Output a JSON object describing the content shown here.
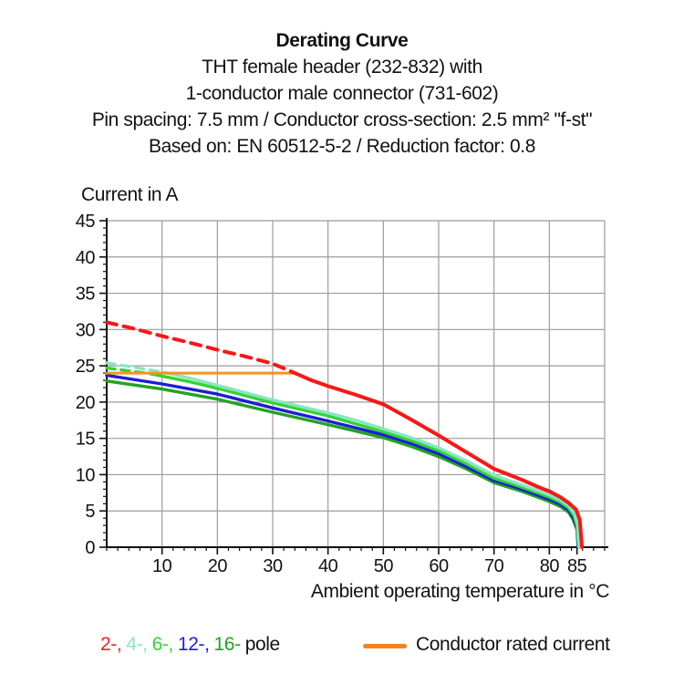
{
  "header": {
    "title": "Derating Curve",
    "subtitle_lines": [
      "THT female header (232-832) with",
      "1-conductor male connector (731-602)",
      "Pin spacing: 7.5 mm / Conductor cross-section: 2.5 mm² \"f-st\"",
      "Based on: EN 60512-5-2 / Reduction factor: 0.8"
    ]
  },
  "legend": {
    "pole_items": [
      {
        "label": "2-,",
        "color": "#fb1e1e"
      },
      {
        "label": "4-,",
        "color": "#8ae5c1"
      },
      {
        "label": "6-,",
        "color": "#31d431"
      },
      {
        "label": "12-,",
        "color": "#1d1dd8"
      },
      {
        "label": "16-",
        "color": "#22a322"
      }
    ],
    "pole_suffix": "pole",
    "rated_swatch_color": "#f8821a",
    "rated_label": "Conductor rated current"
  },
  "chart_data": {
    "type": "line",
    "title": "Derating Curve",
    "ylabel": "Current in A",
    "xlabel": "Ambient operating temperature in °C",
    "xlim": [
      0,
      90
    ],
    "ylim": [
      0,
      45
    ],
    "grid": true,
    "grid_color": "#9b9b9b",
    "axis_color": "#0f0f0f",
    "x_major_ticks": [
      10,
      20,
      30,
      40,
      50,
      60,
      70,
      80,
      85
    ],
    "x_minor_step": 2,
    "y_major_ticks": [
      0,
      5,
      10,
      15,
      20,
      25,
      30,
      35,
      40,
      45
    ],
    "y_minor_step": 1,
    "grid_x": [
      10,
      20,
      30,
      40,
      50,
      60,
      70,
      80,
      90
    ],
    "grid_y": [
      5,
      10,
      15,
      20,
      25,
      30,
      35,
      40,
      45
    ],
    "series": [
      {
        "name": "16-pole",
        "color": "#22a322",
        "width": 3.4,
        "dash_until": null,
        "points": [
          [
            0,
            22.9
          ],
          [
            10,
            21.8
          ],
          [
            20,
            20.4
          ],
          [
            30,
            18.6
          ],
          [
            40,
            16.9
          ],
          [
            50,
            15.1
          ],
          [
            55,
            13.9
          ],
          [
            60,
            12.5
          ],
          [
            65,
            10.8
          ],
          [
            70,
            8.9
          ],
          [
            75,
            7.7
          ],
          [
            80,
            6.3
          ],
          [
            82,
            5.6
          ],
          [
            83.5,
            4.8
          ],
          [
            84.3,
            3.8
          ],
          [
            85,
            2.4
          ],
          [
            85.2,
            0
          ]
        ]
      },
      {
        "name": "12-pole",
        "color": "#1d1dd8",
        "width": 3.4,
        "dash_until": null,
        "points": [
          [
            0,
            23.7
          ],
          [
            10,
            22.5
          ],
          [
            20,
            21.1
          ],
          [
            30,
            19.2
          ],
          [
            40,
            17.4
          ],
          [
            50,
            15.5
          ],
          [
            55,
            14.3
          ],
          [
            60,
            12.9
          ],
          [
            65,
            11.1
          ],
          [
            70,
            9.2
          ],
          [
            75,
            8.0
          ],
          [
            80,
            6.6
          ],
          [
            82,
            5.9
          ],
          [
            83.5,
            5.1
          ],
          [
            84.4,
            4.0
          ],
          [
            85,
            2.6
          ],
          [
            85.2,
            0
          ]
        ]
      },
      {
        "name": "6-pole",
        "color": "#31d431",
        "width": 3.4,
        "dash_until": 8,
        "dash": "9,7",
        "points": [
          [
            0,
            24.7
          ],
          [
            4,
            24.3
          ],
          [
            8,
            23.9
          ],
          [
            15,
            22.8
          ],
          [
            20,
            21.9
          ],
          [
            25,
            20.9
          ],
          [
            30,
            19.9
          ],
          [
            35,
            19.0
          ],
          [
            40,
            18.1
          ],
          [
            45,
            17.0
          ],
          [
            50,
            15.9
          ],
          [
            55,
            14.7
          ],
          [
            60,
            13.3
          ],
          [
            65,
            11.5
          ],
          [
            70,
            9.5
          ],
          [
            75,
            8.3
          ],
          [
            80,
            6.9
          ],
          [
            82,
            6.2
          ],
          [
            83.5,
            5.4
          ],
          [
            84.5,
            4.3
          ],
          [
            85,
            2.9
          ],
          [
            85.3,
            0
          ]
        ]
      },
      {
        "name": "4-pole",
        "color": "#8ae5c1",
        "width": 3.4,
        "dash_until": 11,
        "dash": "9,7",
        "points": [
          [
            0,
            25.4
          ],
          [
            5,
            24.8
          ],
          [
            11,
            24.0
          ],
          [
            15,
            23.3
          ],
          [
            20,
            22.3
          ],
          [
            25,
            21.3
          ],
          [
            30,
            20.3
          ],
          [
            35,
            19.4
          ],
          [
            40,
            18.5
          ],
          [
            45,
            17.5
          ],
          [
            50,
            16.3
          ],
          [
            55,
            15.1
          ],
          [
            60,
            13.7
          ],
          [
            65,
            11.9
          ],
          [
            70,
            9.9
          ],
          [
            75,
            8.6
          ],
          [
            80,
            7.2
          ],
          [
            82,
            6.5
          ],
          [
            83.5,
            5.7
          ],
          [
            84.6,
            4.6
          ],
          [
            85.1,
            3.2
          ],
          [
            85.4,
            0
          ]
        ]
      },
      {
        "name": "conductor-rated-current",
        "color": "#f8921e",
        "width": 3,
        "dash_until": null,
        "points": [
          [
            0,
            24
          ],
          [
            34,
            24
          ]
        ]
      },
      {
        "name": "2-pole",
        "color": "#fb1616",
        "width": 4,
        "dash_until": 34,
        "dash": "11,8",
        "points": [
          [
            0,
            31
          ],
          [
            5,
            30.1
          ],
          [
            10,
            29.1
          ],
          [
            15,
            28.2
          ],
          [
            20,
            27.2
          ],
          [
            25,
            26.3
          ],
          [
            30,
            25.3
          ],
          [
            34,
            24.0
          ],
          [
            37,
            23.0
          ],
          [
            40,
            22.2
          ],
          [
            45,
            21.0
          ],
          [
            50,
            19.7
          ],
          [
            55,
            17.6
          ],
          [
            60,
            15.4
          ],
          [
            65,
            13.1
          ],
          [
            70,
            10.8
          ],
          [
            75,
            9.3
          ],
          [
            78,
            8.3
          ],
          [
            80,
            7.7
          ],
          [
            82,
            6.9
          ],
          [
            83.5,
            6.1
          ],
          [
            84.8,
            5.2
          ],
          [
            85.5,
            3.8
          ],
          [
            85.9,
            0
          ]
        ]
      }
    ]
  }
}
